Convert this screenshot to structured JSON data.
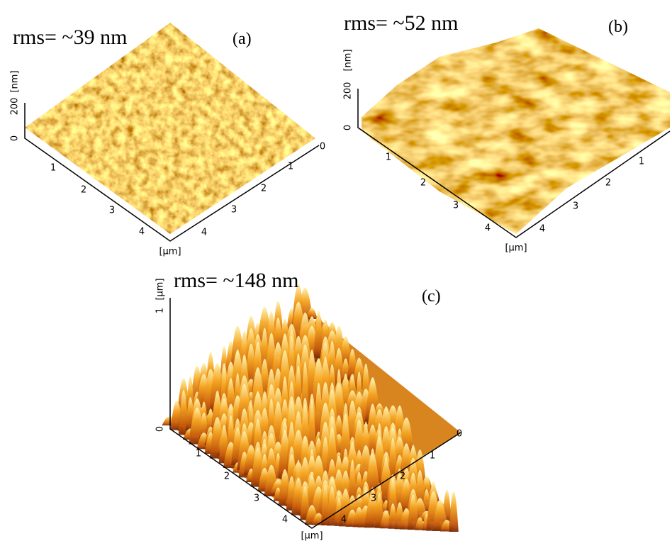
{
  "panels": [
    {
      "rms": "rms= ~39 nm",
      "label": "(a)",
      "z_unit": "[nm]",
      "z_ticks": [
        "0",
        "200"
      ],
      "left_ticks": [
        "1",
        "2",
        "3",
        "4"
      ],
      "right_ticks": [
        "0",
        "1",
        "2",
        "3",
        "4"
      ],
      "unit": "[µm]"
    },
    {
      "rms": "rms= ~52 nm",
      "label": "(b)",
      "z_unit": "[nm]",
      "z_ticks": [
        "0",
        "200"
      ],
      "left_ticks": [
        "1",
        "2",
        "3",
        "4"
      ],
      "right_ticks": [
        "1",
        "2",
        "3",
        "4"
      ],
      "unit": "[µm]"
    },
    {
      "rms": "rms= ~148 nm",
      "label": "(c)",
      "z_unit": "[µm]",
      "z_ticks": [
        "0",
        "1"
      ],
      "left_ticks": [
        "1",
        "2",
        "3",
        "4"
      ],
      "right_ticks": [
        "0",
        "1",
        "2",
        "3",
        "4"
      ],
      "unit": "[µm]"
    }
  ]
}
